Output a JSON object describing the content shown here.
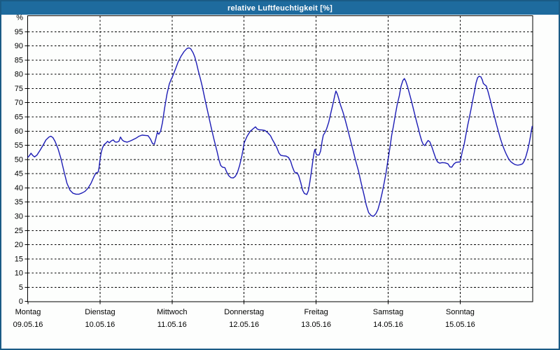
{
  "window": {
    "title": "relative Luftfeuchtigkeit [%]"
  },
  "colors": {
    "titlebar_bg": "#1E6B9E",
    "frame": "#1A5B85",
    "background": "#FDFEFD",
    "grid": "#000000",
    "text": "#000000",
    "line": "#1C1CB5"
  },
  "chart_data": {
    "type": "line",
    "title": "relative Luftfeuchtigkeit [%]",
    "xlabel": "",
    "ylabel": "%",
    "unit_label": "%",
    "ylim": [
      0,
      100
    ],
    "yticks": [
      0,
      5,
      10,
      15,
      20,
      25,
      30,
      35,
      40,
      45,
      50,
      55,
      60,
      65,
      70,
      75,
      80,
      85,
      90,
      95
    ],
    "grid": "dashed",
    "legend_position": "none",
    "x_axis": {
      "hours_total": 168,
      "days": [
        {
          "label": "Montag",
          "date": "09.05.16"
        },
        {
          "label": "Dienstag",
          "date": "10.05.16"
        },
        {
          "label": "Mittwoch",
          "date": "11.05.16"
        },
        {
          "label": "Donnerstag",
          "date": "12.05.16"
        },
        {
          "label": "Freitag",
          "date": "13.05.16"
        },
        {
          "label": "Samstag",
          "date": "14.05.16"
        },
        {
          "label": "Sonntag",
          "date": "15.05.16"
        }
      ]
    },
    "series": [
      {
        "name": "relative Luftfeuchtigkeit",
        "color": "#1C1CB5",
        "points": [
          [
            0,
            50.8
          ],
          [
            0.5,
            51.4
          ],
          [
            1,
            52.2
          ],
          [
            1.6,
            51.4
          ],
          [
            2.2,
            50.9
          ],
          [
            3,
            51.6
          ],
          [
            4,
            53.2
          ],
          [
            5,
            55
          ],
          [
            6,
            56.9
          ],
          [
            7,
            57.9
          ],
          [
            7.6,
            58.2
          ],
          [
            8.3,
            57.7
          ],
          [
            9,
            56.4
          ],
          [
            10,
            53.8
          ],
          [
            11,
            50.2
          ],
          [
            12,
            45.8
          ],
          [
            13,
            41.6
          ],
          [
            14,
            39.2
          ],
          [
            15,
            38.1
          ],
          [
            16,
            37.8
          ],
          [
            17,
            37.8
          ],
          [
            18,
            38.2
          ],
          [
            19,
            38.8
          ],
          [
            20,
            39.9
          ],
          [
            21,
            41.6
          ],
          [
            22,
            44
          ],
          [
            22.6,
            45.2
          ],
          [
            23.4,
            45.6
          ],
          [
            23.7,
            47.3
          ],
          [
            24,
            50
          ],
          [
            24.4,
            52.5
          ],
          [
            24.8,
            54
          ],
          [
            25.3,
            55.2
          ],
          [
            26,
            55.8
          ],
          [
            26.5,
            56.4
          ],
          [
            27.1,
            55.9
          ],
          [
            27.8,
            56.6
          ],
          [
            28.4,
            56.9
          ],
          [
            29,
            56.2
          ],
          [
            29.6,
            56.1
          ],
          [
            30.3,
            56.4
          ],
          [
            30.8,
            57.9
          ],
          [
            31.4,
            56.9
          ],
          [
            32,
            56.4
          ],
          [
            33,
            56.1
          ],
          [
            34,
            56.5
          ],
          [
            35,
            57
          ],
          [
            36,
            57.5
          ],
          [
            37,
            58.2
          ],
          [
            38,
            58.6
          ],
          [
            39,
            58.5
          ],
          [
            40,
            58.4
          ],
          [
            40.8,
            57.2
          ],
          [
            41.5,
            55.6
          ],
          [
            42.1,
            55.4
          ],
          [
            42.6,
            57.3
          ],
          [
            43.1,
            59.6
          ],
          [
            43.6,
            58.9
          ],
          [
            44.2,
            60
          ],
          [
            44.8,
            63
          ],
          [
            45.5,
            68
          ],
          [
            46.3,
            73
          ],
          [
            47.1,
            76.6
          ],
          [
            47.7,
            78.2
          ],
          [
            48,
            78.8
          ],
          [
            49,
            81.5
          ],
          [
            50,
            84.3
          ],
          [
            51,
            86.4
          ],
          [
            52,
            88
          ],
          [
            53,
            89.1
          ],
          [
            53.6,
            89.3
          ],
          [
            54.2,
            89
          ],
          [
            55,
            87.6
          ],
          [
            55.6,
            86
          ],
          [
            56.2,
            83.6
          ],
          [
            56.8,
            81
          ],
          [
            57.4,
            78.6
          ],
          [
            58,
            76
          ],
          [
            59,
            71
          ],
          [
            60,
            66.2
          ],
          [
            61,
            61.5
          ],
          [
            62,
            57
          ],
          [
            63,
            52.8
          ],
          [
            63.6,
            50
          ],
          [
            64.2,
            47.9
          ],
          [
            64.8,
            47.3
          ],
          [
            65.6,
            47.1
          ],
          [
            66.2,
            45.6
          ],
          [
            66.9,
            44.3
          ],
          [
            67.6,
            43.6
          ],
          [
            68.4,
            43.5
          ],
          [
            69.1,
            44.1
          ],
          [
            69.8,
            45.5
          ],
          [
            70.5,
            47.9
          ],
          [
            71.2,
            51
          ],
          [
            71.6,
            53.2
          ],
          [
            72,
            55.8
          ],
          [
            73,
            58.2
          ],
          [
            74,
            59.9
          ],
          [
            75,
            60.8
          ],
          [
            75.8,
            61.5
          ],
          [
            76.4,
            60.7
          ],
          [
            77,
            60.5
          ],
          [
            78,
            60.4
          ],
          [
            79,
            60.2
          ],
          [
            80,
            59.3
          ],
          [
            80.8,
            58.4
          ],
          [
            81.5,
            56.9
          ],
          [
            82.2,
            55.6
          ],
          [
            82.9,
            54.2
          ],
          [
            83.6,
            52.3
          ],
          [
            84.2,
            51.5
          ],
          [
            85,
            51.3
          ],
          [
            86,
            51.2
          ],
          [
            86.8,
            50.7
          ],
          [
            87.5,
            49.4
          ],
          [
            88.1,
            47.4
          ],
          [
            88.7,
            45.8
          ],
          [
            89.2,
            45.2
          ],
          [
            89.6,
            45.4
          ],
          [
            90.2,
            44.3
          ],
          [
            90.9,
            41.8
          ],
          [
            91.5,
            39.2
          ],
          [
            92.1,
            38
          ],
          [
            92.9,
            37.7
          ],
          [
            93.4,
            39
          ],
          [
            93.9,
            42
          ],
          [
            94.4,
            45.5
          ],
          [
            94.9,
            49.5
          ],
          [
            95.3,
            52.3
          ],
          [
            95.6,
            53.6
          ],
          [
            96,
            52
          ],
          [
            96.3,
            51.6
          ],
          [
            97,
            51.6
          ],
          [
            97.5,
            53
          ],
          [
            98,
            56.5
          ],
          [
            98.4,
            58.6
          ],
          [
            98.9,
            59.4
          ],
          [
            99.5,
            60.8
          ],
          [
            100.2,
            63.1
          ],
          [
            101,
            66.8
          ],
          [
            101.8,
            70.5
          ],
          [
            102.2,
            72.5
          ],
          [
            102.6,
            74.1
          ],
          [
            103.1,
            73
          ],
          [
            103.6,
            71.2
          ],
          [
            104.1,
            69.3
          ],
          [
            104.9,
            66.8
          ],
          [
            105.7,
            63.9
          ],
          [
            106.4,
            61.1
          ],
          [
            107.1,
            58.2
          ],
          [
            107.9,
            54.9
          ],
          [
            108.6,
            52
          ],
          [
            109.3,
            49.1
          ],
          [
            110.1,
            46
          ],
          [
            111,
            41.8
          ],
          [
            111.9,
            37.8
          ],
          [
            112.7,
            34
          ],
          [
            113.5,
            31.3
          ],
          [
            114.3,
            30.3
          ],
          [
            115.1,
            30
          ],
          [
            115.9,
            30.9
          ],
          [
            116.6,
            32.4
          ],
          [
            117.3,
            35
          ],
          [
            118,
            38.2
          ],
          [
            118.7,
            41.9
          ],
          [
            119.3,
            45.3
          ],
          [
            119.8,
            48.8
          ],
          [
            120.2,
            51.5
          ],
          [
            120.7,
            55
          ],
          [
            121.2,
            58.6
          ],
          [
            121.8,
            62
          ],
          [
            122.4,
            65.8
          ],
          [
            123,
            69.3
          ],
          [
            123.7,
            72.4
          ],
          [
            124.3,
            75.8
          ],
          [
            124.9,
            77.8
          ],
          [
            125.4,
            78.5
          ],
          [
            125.9,
            77.5
          ],
          [
            126.5,
            75.5
          ],
          [
            127.2,
            72.8
          ],
          [
            127.9,
            70
          ],
          [
            128.6,
            67
          ],
          [
            129.3,
            64
          ],
          [
            130,
            61.2
          ],
          [
            130.6,
            58.7
          ],
          [
            131.2,
            56.5
          ],
          [
            131.7,
            55.3
          ],
          [
            132.2,
            54.9
          ],
          [
            132.8,
            55.9
          ],
          [
            133.3,
            56.7
          ],
          [
            133.9,
            56.2
          ],
          [
            134.5,
            54.6
          ],
          [
            135.2,
            52.4
          ],
          [
            135.9,
            50.2
          ],
          [
            136.5,
            49.1
          ],
          [
            137.2,
            48.7
          ],
          [
            138,
            48.9
          ],
          [
            139,
            48.8
          ],
          [
            139.9,
            48.5
          ],
          [
            140.6,
            47.4
          ],
          [
            141.2,
            47.3
          ],
          [
            141.9,
            48.4
          ],
          [
            142.6,
            49
          ],
          [
            143.4,
            49.1
          ],
          [
            144,
            49.1
          ],
          [
            144.7,
            52.8
          ],
          [
            145.3,
            55.2
          ],
          [
            145.9,
            58.6
          ],
          [
            146.5,
            62
          ],
          [
            147.1,
            65
          ],
          [
            147.7,
            68.2
          ],
          [
            148.2,
            71
          ],
          [
            148.8,
            74.2
          ],
          [
            149.3,
            77
          ],
          [
            149.8,
            78.8
          ],
          [
            150.3,
            79.3
          ],
          [
            150.9,
            79.1
          ],
          [
            151.4,
            78
          ],
          [
            151.7,
            76.8
          ],
          [
            152.2,
            76.3
          ],
          [
            152.7,
            75.9
          ],
          [
            153.3,
            73.8
          ],
          [
            154,
            71
          ],
          [
            154.7,
            68
          ],
          [
            155.4,
            65.2
          ],
          [
            156.1,
            62.3
          ],
          [
            156.8,
            59.6
          ],
          [
            157.4,
            57.3
          ],
          [
            158.1,
            55.1
          ],
          [
            158.8,
            53.2
          ],
          [
            159.4,
            51.8
          ],
          [
            160.1,
            50.3
          ],
          [
            160.8,
            49.3
          ],
          [
            161.5,
            48.7
          ],
          [
            162.3,
            48.2
          ],
          [
            163.2,
            48
          ],
          [
            164.1,
            48.2
          ],
          [
            164.8,
            48.5
          ],
          [
            165.4,
            49.6
          ],
          [
            166,
            51.4
          ],
          [
            166.5,
            53.4
          ],
          [
            167,
            55.7
          ],
          [
            167.4,
            58
          ],
          [
            167.7,
            60
          ],
          [
            168,
            61.7
          ]
        ]
      }
    ]
  }
}
